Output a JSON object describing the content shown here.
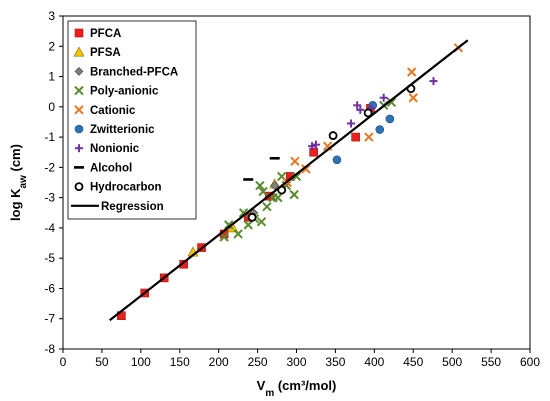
{
  "chart_data": {
    "type": "scatter",
    "xlabel": {
      "main": "V",
      "sub": "m",
      "tail": " (cm³/mol)"
    },
    "ylabel": {
      "main": "log K",
      "sub": "aw",
      "tail": " (cm)"
    },
    "xlim": [
      0,
      600
    ],
    "ylim": [
      -8,
      3
    ],
    "xticks": [
      0,
      50,
      100,
      150,
      200,
      250,
      300,
      350,
      400,
      450,
      500,
      550,
      600
    ],
    "yticks": [
      -8,
      -7,
      -6,
      -5,
      -4,
      -3,
      -2,
      -1,
      0,
      1,
      2,
      3
    ],
    "grid": false,
    "legend_position": "top-left",
    "series": [
      {
        "name": "PFCA",
        "marker": "square",
        "color": "#e8201e",
        "points": [
          [
            75,
            -6.9
          ],
          [
            105,
            -6.15
          ],
          [
            130,
            -5.65
          ],
          [
            155,
            -5.2
          ],
          [
            178,
            -4.65
          ],
          [
            207,
            -4.2
          ],
          [
            238,
            -3.65
          ],
          [
            265,
            -2.95
          ],
          [
            292,
            -2.3
          ],
          [
            322,
            -1.5
          ],
          [
            376,
            -1.0
          ],
          [
            395,
            -0.05
          ]
        ]
      },
      {
        "name": "PFSA",
        "marker": "triangle",
        "color": "#f5c400",
        "points": [
          [
            167,
            -4.8
          ],
          [
            218,
            -4.0
          ],
          [
            272,
            -2.55
          ]
        ]
      },
      {
        "name": "Branched-PFCA",
        "marker": "diamond",
        "color": "#7f7f7f",
        "points": [
          [
            245,
            -3.5
          ],
          [
            272,
            -2.6
          ]
        ]
      },
      {
        "name": "Poly-anionic",
        "marker": "x",
        "color": "#5a8a2e",
        "points": [
          [
            207,
            -4.3
          ],
          [
            213,
            -3.9
          ],
          [
            225,
            -4.2
          ],
          [
            232,
            -3.5
          ],
          [
            238,
            -3.9
          ],
          [
            246,
            -3.7
          ],
          [
            253,
            -2.6
          ],
          [
            255,
            -3.8
          ],
          [
            257,
            -2.8
          ],
          [
            262,
            -3.3
          ],
          [
            270,
            -3.0
          ],
          [
            276,
            -3.0
          ],
          [
            281,
            -2.3
          ],
          [
            287,
            -2.6
          ],
          [
            297,
            -2.9
          ],
          [
            300,
            -2.3
          ],
          [
            412,
            0.05
          ],
          [
            422,
            0.15
          ]
        ]
      },
      {
        "name": "Cationic",
        "marker": "x",
        "color": "#e87722",
        "points": [
          [
            288,
            -2.5
          ],
          [
            298,
            -1.8
          ],
          [
            312,
            -2.05
          ],
          [
            340,
            -1.3
          ],
          [
            393,
            -1.0
          ],
          [
            448,
            1.15
          ],
          [
            450,
            0.3
          ],
          [
            508,
            1.95
          ]
        ]
      },
      {
        "name": "Zwitterionic",
        "marker": "circle",
        "color": "#2e74b5",
        "points": [
          [
            352,
            -1.75
          ],
          [
            398,
            0.05
          ],
          [
            407,
            -0.75
          ],
          [
            420,
            -0.4
          ]
        ]
      },
      {
        "name": "Nonionic",
        "marker": "plus",
        "color": "#7030a0",
        "points": [
          [
            320,
            -1.3
          ],
          [
            325,
            -1.25
          ],
          [
            370,
            -0.55
          ],
          [
            378,
            0.05
          ],
          [
            382,
            -0.1
          ],
          [
            396,
            -0.05
          ],
          [
            412,
            0.3
          ],
          [
            476,
            0.85
          ]
        ]
      },
      {
        "name": "Alcohol",
        "marker": "dash",
        "color": "#000000",
        "points": [
          [
            238,
            -2.4
          ],
          [
            272,
            -1.7
          ]
        ]
      },
      {
        "name": "Hydrocarbon",
        "marker": "opencircle",
        "color": "#000000",
        "points": [
          [
            243,
            -3.65
          ],
          [
            281,
            -2.75
          ],
          [
            347,
            -0.95
          ],
          [
            392,
            -0.2
          ],
          [
            447,
            0.6
          ]
        ]
      },
      {
        "name": "Regression",
        "marker": "line",
        "color": "#000000",
        "points": [
          [
            60,
            -7.05
          ],
          [
            520,
            2.2
          ]
        ]
      }
    ]
  }
}
